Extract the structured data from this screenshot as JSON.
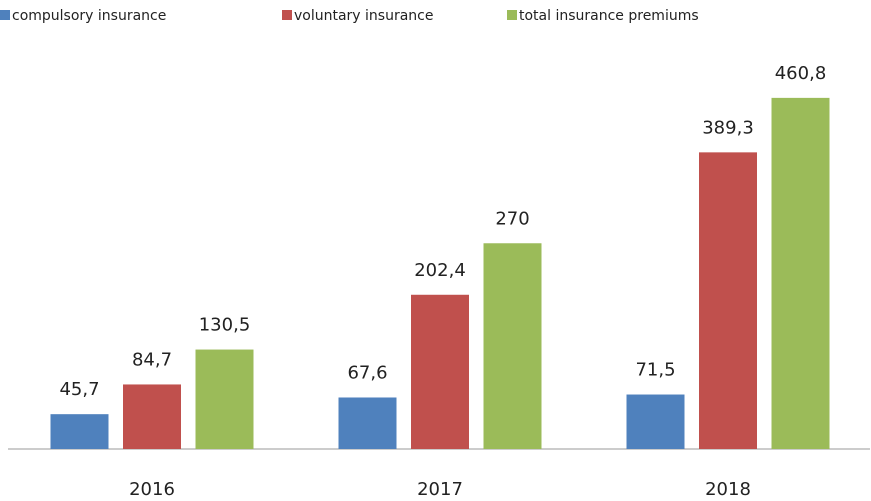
{
  "chart_data": {
    "type": "bar",
    "categories": [
      "2016",
      "2017",
      "2018"
    ],
    "series": [
      {
        "name": "compulsory insurance",
        "color": "#4f81bd",
        "values": [
          45.7,
          67.6,
          71.5
        ],
        "value_labels": [
          "45,7",
          "67,6",
          "71,5"
        ]
      },
      {
        "name": "voluntary insurance",
        "color": "#c0504d",
        "values": [
          84.7,
          202.4,
          389.3
        ],
        "value_labels": [
          "84,7",
          "202,4",
          "389,3"
        ]
      },
      {
        "name": "total insurance premiums",
        "color": "#9bbb59",
        "values": [
          130.5,
          270,
          460.8
        ],
        "value_labels": [
          "130,5",
          "270",
          "460,8"
        ]
      }
    ],
    "legend": "top-left"
  }
}
